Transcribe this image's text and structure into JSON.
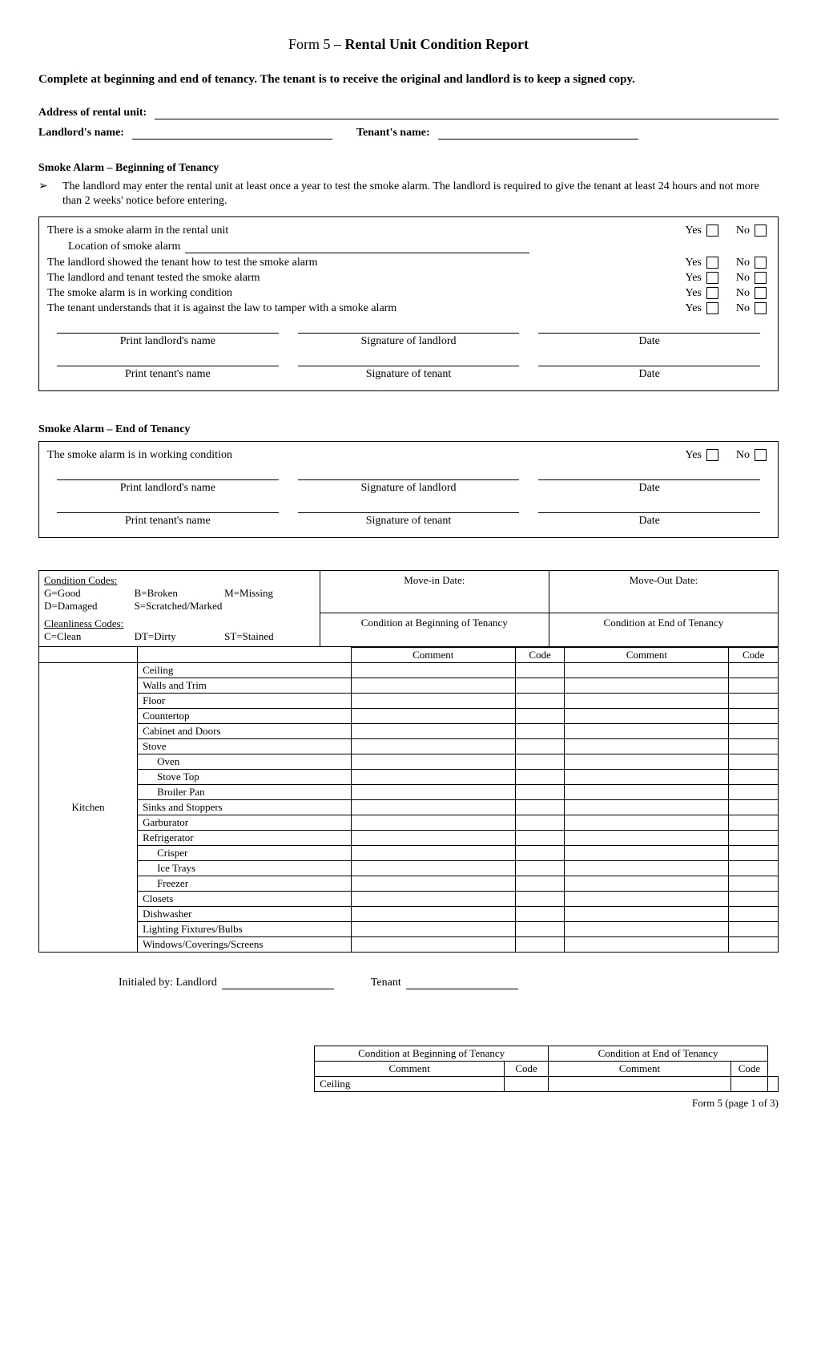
{
  "title_prefix": "Form 5 – ",
  "title_main": "Rental Unit Condition Report",
  "intro": "Complete at beginning and end of tenancy. The tenant is to receive the original and landlord is to keep a signed copy.",
  "labels": {
    "address": "Address of rental unit:",
    "landlord_name": "Landlord's name:",
    "tenant_name": "Tenant's name:"
  },
  "smoke_begin": {
    "heading": "Smoke Alarm – Beginning of Tenancy",
    "bullet": "The landlord may enter the rental unit at least once a year to test the smoke alarm.  The landlord is required to give the tenant at least 24 hours and not more than 2 weeks' notice before entering.",
    "q1": "There is a smoke alarm in the rental unit",
    "q1_loc_label": "Location of smoke alarm",
    "q2": "The landlord showed the tenant how to test the smoke alarm",
    "q3": "The landlord and tenant tested the smoke alarm",
    "q4": "The smoke alarm is in working condition",
    "q5": "The tenant understands that it is against the law to tamper with a smoke alarm"
  },
  "yes": "Yes",
  "no": "No",
  "sig": {
    "print_landlord": "Print landlord's name",
    "sig_landlord": "Signature of landlord",
    "date": "Date",
    "print_tenant": "Print tenant's name",
    "sig_tenant": "Signature of tenant"
  },
  "smoke_end": {
    "heading": "Smoke Alarm – End of Tenancy",
    "q1": "The smoke alarm is in working condition"
  },
  "codes": {
    "cond_heading": "Condition Codes:",
    "cond_row1": [
      "G=Good",
      "B=Broken",
      "M=Missing"
    ],
    "cond_row2": [
      "D=Damaged",
      "S=Scratched/Marked",
      ""
    ],
    "clean_heading": "Cleanliness Codes:",
    "clean_row": [
      "C=Clean",
      "DT=Dirty",
      "ST=Stained"
    ],
    "move_in": "Move-in Date:",
    "move_out": "Move-Out Date:",
    "cond_begin": "Condition at Beginning of Tenancy",
    "cond_end": "Condition at End of Tenancy",
    "comment": "Comment",
    "code": "Code"
  },
  "kitchen": {
    "room": "Kitchen",
    "items": [
      {
        "label": "Ceiling",
        "indent": false
      },
      {
        "label": "Walls and Trim",
        "indent": false
      },
      {
        "label": "Floor",
        "indent": false
      },
      {
        "label": "Countertop",
        "indent": false
      },
      {
        "label": "Cabinet and Doors",
        "indent": false
      },
      {
        "label": "Stove",
        "indent": false
      },
      {
        "label": "Oven",
        "indent": true
      },
      {
        "label": "Stove Top",
        "indent": true
      },
      {
        "label": "Broiler Pan",
        "indent": true
      },
      {
        "label": "Sinks and Stoppers",
        "indent": false
      },
      {
        "label": "Garburator",
        "indent": false
      },
      {
        "label": "Refrigerator",
        "indent": false
      },
      {
        "label": "Crisper",
        "indent": true
      },
      {
        "label": "Ice Trays",
        "indent": true
      },
      {
        "label": "Freezer",
        "indent": true
      },
      {
        "label": "Closets",
        "indent": false
      },
      {
        "label": "Dishwasher",
        "indent": false
      },
      {
        "label": "Lighting Fixtures/Bulbs",
        "indent": false
      },
      {
        "label": "Windows/Coverings/Screens",
        "indent": false
      }
    ]
  },
  "initialed": {
    "prefix": "Initialed by:  Landlord",
    "tenant": "Tenant"
  },
  "table2_item": "Ceiling",
  "footer": "Form 5 (page 1 of 3)"
}
